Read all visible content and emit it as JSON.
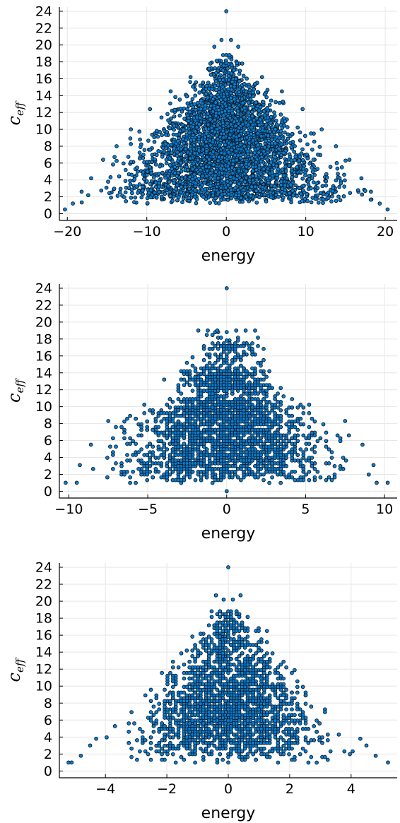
{
  "chart_data": [
    {
      "type": "scatter",
      "xlabel": "energy",
      "ylabel": "c",
      "ylabel_subscript": "eff",
      "xlim": [
        -21,
        21.5
      ],
      "ylim": [
        -0.8,
        24.5
      ],
      "xticks": [
        -20,
        -10,
        0,
        10,
        20
      ],
      "xtick_labels": [
        "−20",
        "−10",
        "0",
        "10",
        "20"
      ],
      "yticks": [
        0,
        2,
        4,
        6,
        8,
        10,
        12,
        14,
        16,
        18,
        20,
        22,
        24
      ],
      "ytick_labels": [
        "0",
        "2",
        "4",
        "6",
        "8",
        "10",
        "12",
        "14",
        "16",
        "18",
        "20",
        "22",
        "24"
      ],
      "grid": true,
      "legend": "none",
      "marker_color": "#0b7fd0",
      "marker_edge": "#0a1a2a",
      "outline_points": [
        {
          "x": 0,
          "y": 24
        },
        {
          "x": -0.6,
          "y": 20.6
        },
        {
          "x": 0.6,
          "y": 20.6
        },
        {
          "x": -1.5,
          "y": 19.8
        },
        {
          "x": 1.5,
          "y": 19.8
        },
        {
          "x": -0.4,
          "y": 18.8
        },
        {
          "x": 0.4,
          "y": 18.8
        },
        {
          "x": -20.3,
          "y": 0.5
        },
        {
          "x": 20.3,
          "y": 0.5
        },
        {
          "x": -19.3,
          "y": 1.2
        },
        {
          "x": 19.3,
          "y": 1.2
        },
        {
          "x": -18.2,
          "y": 2.6
        },
        {
          "x": 18.2,
          "y": 2.6
        },
        {
          "x": -17.0,
          "y": 4.2
        },
        {
          "x": 17.0,
          "y": 4.2
        },
        {
          "x": -15.5,
          "y": 6.4
        },
        {
          "x": 15.5,
          "y": 6.4
        },
        {
          "x": -13.8,
          "y": 8.0
        },
        {
          "x": 13.8,
          "y": 8.0
        },
        {
          "x": -12.0,
          "y": 10.0
        },
        {
          "x": 12.0,
          "y": 10.0
        },
        {
          "x": -9.6,
          "y": 12.4
        },
        {
          "x": 9.6,
          "y": 12.4
        },
        {
          "x": -7.0,
          "y": 14.5
        },
        {
          "x": 7.0,
          "y": 14.5
        },
        {
          "x": -4.5,
          "y": 16.2
        },
        {
          "x": 4.5,
          "y": 16.2
        },
        {
          "x": -2.0,
          "y": 17.8
        },
        {
          "x": 2.0,
          "y": 17.8
        }
      ],
      "density": {
        "seed": 11,
        "n": 3400,
        "halfwidth_by_y": [
          [
            1,
            20
          ],
          [
            2,
            19.3
          ],
          [
            3,
            18
          ],
          [
            4,
            17
          ],
          [
            6,
            15.5
          ],
          [
            8,
            13.5
          ],
          [
            10,
            11.5
          ],
          [
            12,
            9
          ],
          [
            14,
            7
          ],
          [
            16,
            4.5
          ],
          [
            18,
            2.2
          ],
          [
            19,
            0.8
          ]
        ],
        "y_weights": [
          [
            1.2,
            0.25
          ],
          [
            2.5,
            1.2
          ],
          [
            3,
            1.2
          ],
          [
            4,
            1.0
          ],
          [
            6,
            1.0
          ],
          [
            8,
            0.95
          ],
          [
            10,
            0.8
          ],
          [
            12,
            0.6
          ],
          [
            14,
            0.4
          ],
          [
            16,
            0.2
          ],
          [
            18,
            0.08
          ],
          [
            19,
            0.02
          ]
        ],
        "y_quantum": 0,
        "x_quantum": 0
      }
    },
    {
      "type": "scatter",
      "xlabel": "energy",
      "ylabel": "c",
      "ylabel_subscript": "eff",
      "xlim": [
        -10.6,
        10.8
      ],
      "ylim": [
        -0.8,
        24.5
      ],
      "xticks": [
        -10,
        -5,
        0,
        5,
        10
      ],
      "xtick_labels": [
        "−10",
        "−5",
        "0",
        "5",
        "10"
      ],
      "yticks": [
        0,
        2,
        4,
        6,
        8,
        10,
        12,
        14,
        16,
        18,
        20,
        22,
        24
      ],
      "ytick_labels": [
        "0",
        "2",
        "4",
        "6",
        "8",
        "10",
        "12",
        "14",
        "16",
        "18",
        "20",
        "22",
        "24"
      ],
      "grid": true,
      "legend": "none",
      "marker_color": "#0b7fd0",
      "marker_edge": "#0a1a2a",
      "outline_points": [
        {
          "x": 0,
          "y": 24
        },
        {
          "x": 0,
          "y": 0
        },
        {
          "x": -10.2,
          "y": 1.0
        },
        {
          "x": 10.2,
          "y": 1.0
        },
        {
          "x": -9.5,
          "y": 1.0
        },
        {
          "x": 9.5,
          "y": 1.0
        },
        {
          "x": -9.3,
          "y": 3.1
        },
        {
          "x": 9.3,
          "y": 3.1
        },
        {
          "x": -8.6,
          "y": 5.5
        },
        {
          "x": 8.6,
          "y": 5.5
        },
        {
          "x": -7.5,
          "y": 8.3
        },
        {
          "x": 7.5,
          "y": 8.3
        },
        {
          "x": -1.8,
          "y": 19.0
        },
        {
          "x": -1.2,
          "y": 19.0
        },
        {
          "x": -0.6,
          "y": 19.0
        },
        {
          "x": 0.6,
          "y": 19.0
        },
        {
          "x": 1.2,
          "y": 19.0
        },
        {
          "x": 1.8,
          "y": 19.0
        }
      ],
      "density": {
        "seed": 23,
        "n": 2600,
        "halfwidth_by_y": [
          [
            1,
            10
          ],
          [
            2,
            9.3
          ],
          [
            3,
            9.0
          ],
          [
            4,
            8.2
          ],
          [
            6,
            8.0
          ],
          [
            8,
            7.3
          ],
          [
            10,
            5.8
          ],
          [
            12,
            4.2
          ],
          [
            14,
            4.0
          ],
          [
            16,
            2.6
          ],
          [
            18,
            2.2
          ],
          [
            19,
            2.0
          ]
        ],
        "y_weights": [
          [
            1.0,
            0.15
          ],
          [
            2.2,
            0.9
          ],
          [
            3,
            1.0
          ],
          [
            4,
            1.1
          ],
          [
            5,
            1.1
          ],
          [
            6,
            1.2
          ],
          [
            7,
            1.2
          ],
          [
            8,
            1.0
          ],
          [
            9,
            1.0
          ],
          [
            10,
            1.0
          ],
          [
            11,
            0.35
          ],
          [
            12,
            0.55
          ],
          [
            13,
            0.7
          ],
          [
            14,
            0.5
          ],
          [
            15,
            0.15
          ],
          [
            16,
            0.2
          ],
          [
            17,
            0.25
          ],
          [
            18,
            0.05
          ],
          [
            19,
            0.08
          ]
        ],
        "y_quantum": 0.33,
        "x_quantum": 0.18
      }
    },
    {
      "type": "scatter",
      "xlabel": "energy",
      "ylabel": "c",
      "ylabel_subscript": "eff",
      "xlim": [
        -5.5,
        5.5
      ],
      "ylim": [
        -0.8,
        24.5
      ],
      "xticks": [
        -4,
        -2,
        0,
        2,
        4
      ],
      "xtick_labels": [
        "−4",
        "−2",
        "0",
        "2",
        "4"
      ],
      "yticks": [
        0,
        2,
        4,
        6,
        8,
        10,
        12,
        14,
        16,
        18,
        20,
        22,
        24
      ],
      "ytick_labels": [
        "0",
        "2",
        "4",
        "6",
        "8",
        "10",
        "12",
        "14",
        "16",
        "18",
        "20",
        "22",
        "24"
      ],
      "grid": true,
      "legend": "none",
      "marker_color": "#0b7fd0",
      "marker_edge": "#0a1a2a",
      "outline_points": [
        {
          "x": 0,
          "y": 24
        },
        {
          "x": 0,
          "y": 1.0
        },
        {
          "x": -0.4,
          "y": 20.7
        },
        {
          "x": 0.4,
          "y": 20.7
        },
        {
          "x": -0.15,
          "y": 20.2
        },
        {
          "x": 0.15,
          "y": 20.2
        },
        {
          "x": -5.2,
          "y": 1.0
        },
        {
          "x": 5.2,
          "y": 1.0
        },
        {
          "x": -5.1,
          "y": 1.0
        },
        {
          "x": -4.8,
          "y": 1.8
        },
        {
          "x": 4.8,
          "y": 1.8
        },
        {
          "x": -4.5,
          "y": 3.0
        },
        {
          "x": 4.5,
          "y": 3.0
        },
        {
          "x": -4.3,
          "y": 3.8
        },
        {
          "x": 4.3,
          "y": 3.8
        }
      ],
      "density": {
        "seed": 37,
        "n": 2000,
        "halfwidth_by_y": [
          [
            1,
            5
          ],
          [
            2,
            4.6
          ],
          [
            3,
            4.4
          ],
          [
            4,
            4.0
          ],
          [
            6,
            3.6
          ],
          [
            8,
            3.3
          ],
          [
            10,
            2.8
          ],
          [
            12,
            2.4
          ],
          [
            14,
            1.9
          ],
          [
            16,
            1.5
          ],
          [
            18,
            0.9
          ],
          [
            19,
            0.6
          ]
        ],
        "y_weights": [
          [
            1.0,
            0.15
          ],
          [
            2,
            0.35
          ],
          [
            3,
            0.9
          ],
          [
            4,
            1.0
          ],
          [
            6,
            1.1
          ],
          [
            8,
            1.0
          ],
          [
            10,
            0.8
          ],
          [
            12,
            0.6
          ],
          [
            14,
            0.4
          ],
          [
            16,
            0.25
          ],
          [
            18,
            0.1
          ],
          [
            19,
            0.06
          ]
        ],
        "y_quantum": 0.33,
        "x_quantum": 0.09
      }
    }
  ]
}
